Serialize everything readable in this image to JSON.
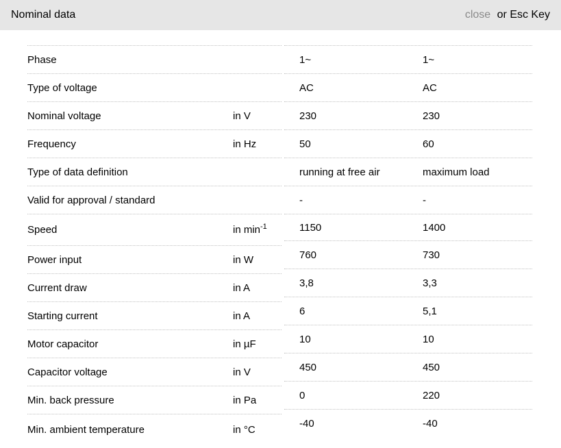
{
  "header": {
    "title": "Nominal data",
    "close_label": "close",
    "esc_hint": "or Esc Key"
  },
  "colors": {
    "header_bg": "#e6e6e6",
    "close_link": "#8a8a8a",
    "text": "#000000",
    "separator": "#c0c0c0"
  },
  "rows": [
    {
      "label": "Phase",
      "unit": "",
      "v1": "1~",
      "v2": "1~"
    },
    {
      "label": "Type of voltage",
      "unit": "",
      "v1": "AC",
      "v2": "AC"
    },
    {
      "label": "Nominal voltage",
      "unit": "in V",
      "v1": "230",
      "v2": "230"
    },
    {
      "label": "Frequency",
      "unit": "in Hz",
      "v1": "50",
      "v2": "60"
    },
    {
      "label": "Type of data definition",
      "unit": "",
      "v1": "running at free air",
      "v2": "maximum load"
    },
    {
      "label": "Valid for approval / standard",
      "unit": "",
      "v1": "-",
      "v2": "-"
    },
    {
      "label": "Speed",
      "unit": "in min",
      "unit_sup": "-1",
      "v1": "1150",
      "v2": "1400"
    },
    {
      "label": "Power input",
      "unit": "in W",
      "v1": "760",
      "v2": "730"
    },
    {
      "label": "Current draw",
      "unit": "in A",
      "v1": "3,8",
      "v2": "3,3"
    },
    {
      "label": "Starting current",
      "unit": "in A",
      "v1": "6",
      "v2": "5,1"
    },
    {
      "label": "Motor capacitor",
      "unit": "in µF",
      "v1": "10",
      "v2": "10"
    },
    {
      "label": "Capacitor voltage",
      "unit": "in V",
      "v1": "450",
      "v2": "450"
    },
    {
      "label": "Min. back pressure",
      "unit": "in Pa",
      "v1": "0",
      "v2": "220"
    },
    {
      "label": "Min. ambient temperature",
      "unit": "in °C",
      "v1": "-40",
      "v2": "-40"
    }
  ]
}
